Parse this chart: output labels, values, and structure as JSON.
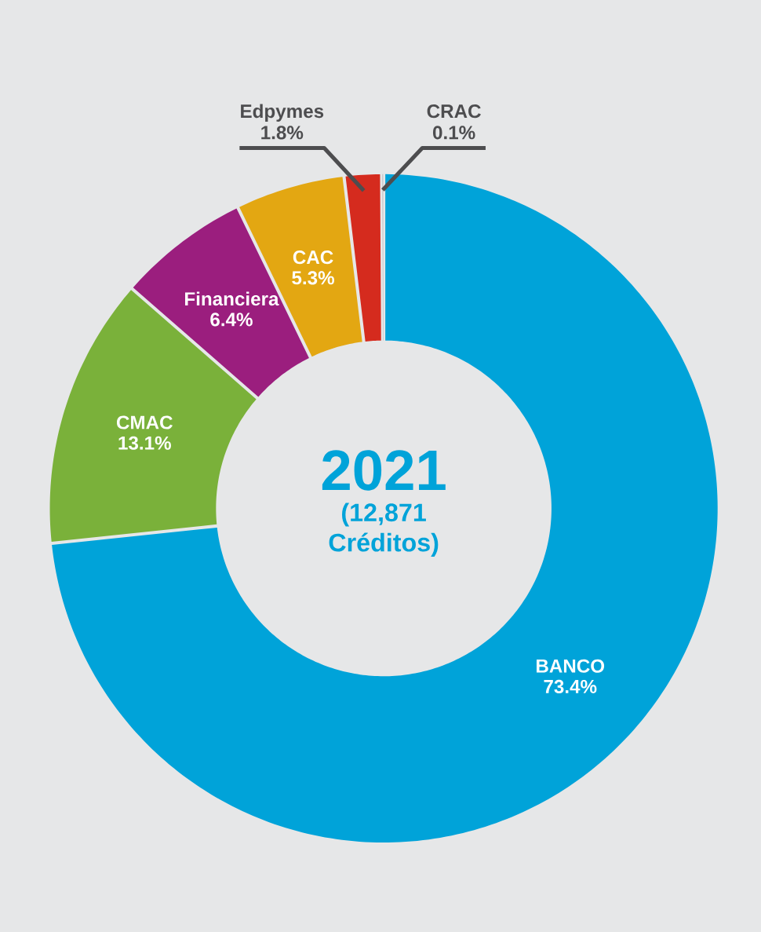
{
  "chart_data": {
    "type": "donut",
    "title": "2021",
    "subtitle": "(12,871 Créditos)",
    "categories": [
      "BANCO",
      "CMAC",
      "Financiera",
      "CAC",
      "Edpymes",
      "CRAC"
    ],
    "values": [
      73.4,
      13.1,
      6.4,
      5.3,
      1.8,
      0.1
    ],
    "value_labels": [
      "73.4%",
      "13.1%",
      "6.4%",
      "5.3%",
      "1.8%",
      "0.1%"
    ],
    "colors": [
      "#00a3d9",
      "#7ab13a",
      "#9b1e7e",
      "#e3a712",
      "#d52b1e",
      "#c7c8ca"
    ]
  }
}
